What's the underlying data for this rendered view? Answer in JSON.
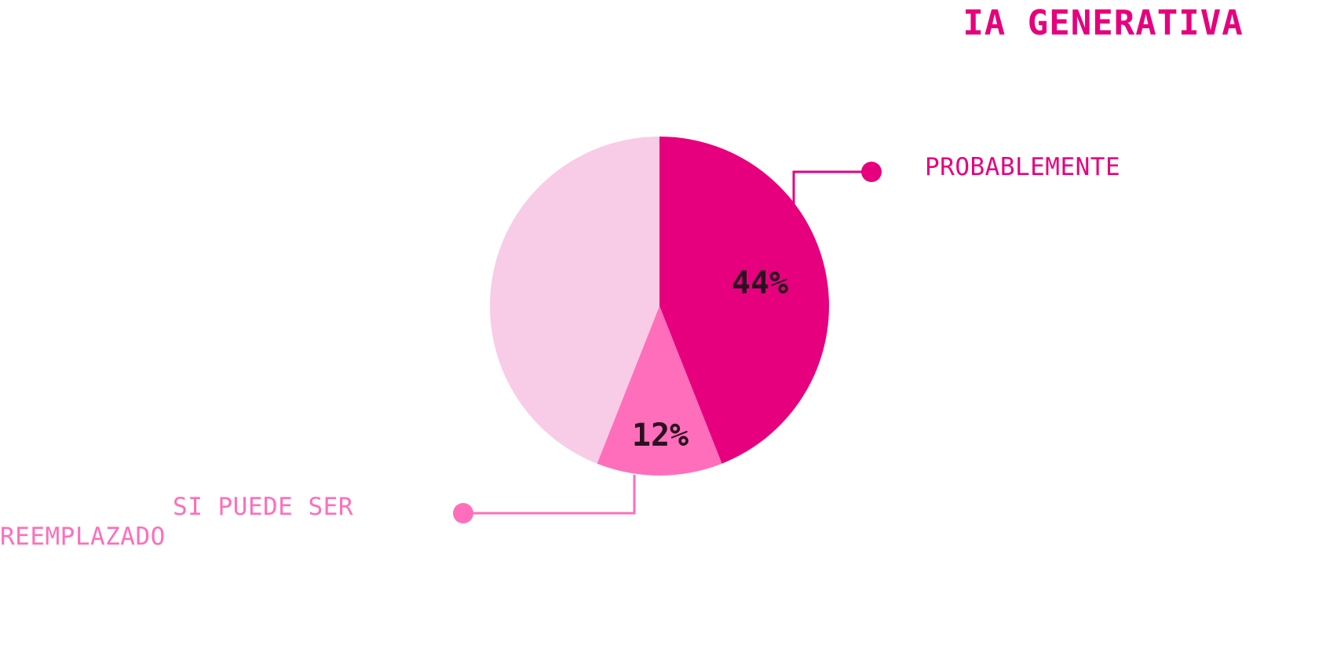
{
  "title": "IA GENERATIVA",
  "colors": {
    "title": "#E6007E",
    "background": "#FFFFFF",
    "pct_label": "#2A1020"
  },
  "chart_data": {
    "type": "pie",
    "title": "IA GENERATIVA",
    "start_angle_deg": 0,
    "direction": "clockwise",
    "slices": [
      {
        "label": "PROBABLEMENTE",
        "value": 44,
        "display": "44%",
        "color": "#E6007E",
        "callout_color": "#E6007E"
      },
      {
        "label": "SI PUEDE SER REEMPLAZADO",
        "label_lines": [
          "SI PUEDE SER",
          "REEMPLAZADO"
        ],
        "value": 12,
        "display": "12%",
        "color": "#FF6EBB",
        "callout_color": "#FF6EBB"
      },
      {
        "label": "",
        "value": 44,
        "display": "",
        "color": "#F8CCE6"
      }
    ]
  }
}
